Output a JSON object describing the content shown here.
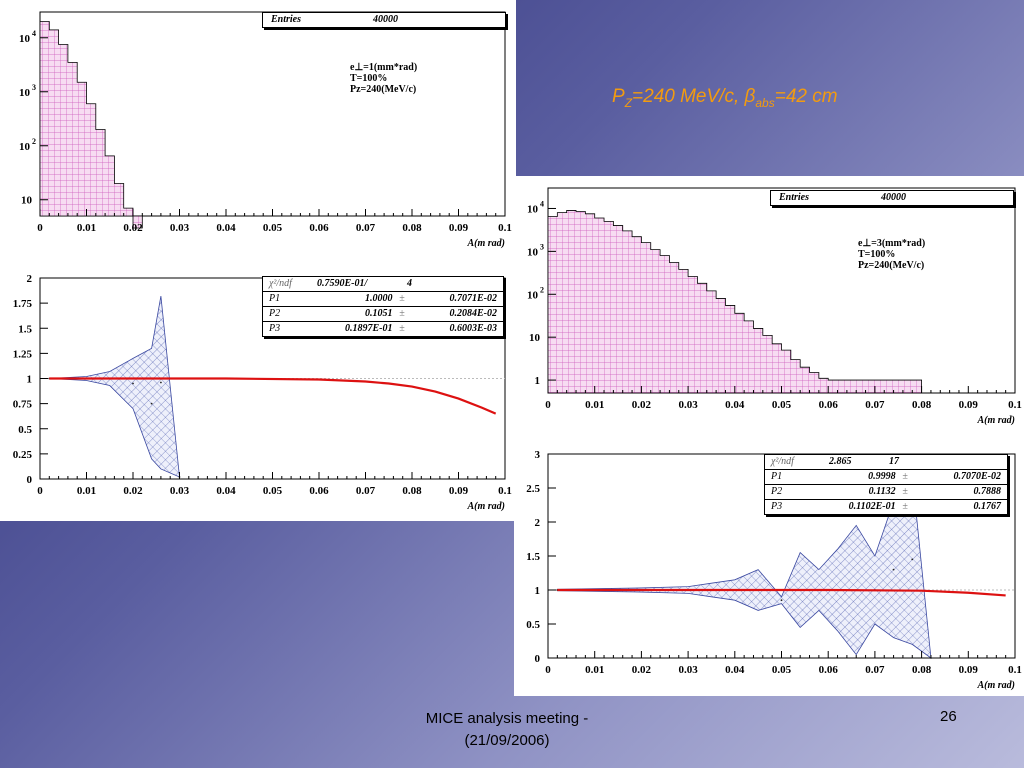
{
  "slide": {
    "title_main": "=240 MeV/c, ",
    "title_beta_sub": "abs",
    "title_tail": "=42 cm",
    "footer_line1": "MICE analysis meeting -",
    "footer_line2": "(21/09/2006)",
    "page_number": "26"
  },
  "colors": {
    "histogram_fill": "#f7dcf2",
    "histogram_hatch": "#cc55bb",
    "band_hatch": "#4050a8",
    "fit_line": "#dd1111",
    "title": "#f29b10"
  },
  "chart_data": [
    {
      "type": "bar",
      "panel": "left-top",
      "entries_label": "Entries",
      "entries_value": "40000",
      "params": [
        "e⊥=1(mm*rad)",
        "T=100%",
        "Pᴢ=240(MeV/c)"
      ],
      "xlabel": "A(m rad)",
      "xlim": [
        0,
        0.1
      ],
      "yscale": "log",
      "ylim": [
        5,
        30000
      ],
      "x_ticks": [
        "0",
        "0.01",
        "0.02",
        "0.03",
        "0.04",
        "0.05",
        "0.06",
        "0.07",
        "0.08",
        "0.09",
        "0.1"
      ],
      "y_ticks": [
        {
          "v": 10,
          "mant": "10",
          "exp": ""
        },
        {
          "v": 100,
          "mant": "10",
          "exp": "2"
        },
        {
          "v": 1000,
          "mant": "10",
          "exp": "3"
        },
        {
          "v": 10000,
          "mant": "10",
          "exp": "4"
        }
      ],
      "bin_width": 0.002,
      "values": [
        20000,
        14000,
        7500,
        3500,
        1500,
        600,
        200,
        65,
        20,
        7,
        3,
        0,
        0,
        0,
        0,
        0,
        0,
        0,
        0,
        0,
        0,
        0,
        0,
        0,
        0,
        0,
        0,
        0,
        0,
        0,
        0,
        0,
        0,
        0,
        0,
        0,
        0,
        0,
        0,
        0,
        0,
        0,
        0,
        0,
        0,
        0,
        0,
        0,
        0,
        0
      ]
    },
    {
      "type": "line",
      "panel": "left-bottom",
      "xlabel": "A(m rad)",
      "xlim": [
        0,
        0.1
      ],
      "ylim": [
        0,
        2
      ],
      "x_ticks": [
        "0",
        "0.01",
        "0.02",
        "0.03",
        "0.04",
        "0.05",
        "0.06",
        "0.07",
        "0.08",
        "0.09",
        "0.1"
      ],
      "y_ticks": [
        "0",
        "0.25",
        "0.5",
        "0.75",
        "1",
        "1.25",
        "1.5",
        "1.75",
        "2"
      ],
      "stats": {
        "chi2_label": "χ²/ndf",
        "chi2_value": "0.7590E-01/",
        "ndf": "4",
        "rows": [
          {
            "name": "P1",
            "value": "1.0000",
            "pm": "±",
            "error": "0.7071E-02"
          },
          {
            "name": "P2",
            "value": "0.1051",
            "pm": "±",
            "error": "0.2084E-02"
          },
          {
            "name": "P3",
            "value": "0.1897E-01",
            "pm": "±",
            "error": "0.6003E-03"
          }
        ]
      },
      "band_upper": {
        "x": [
          0.002,
          0.01,
          0.015,
          0.02,
          0.024,
          0.026,
          0.03
        ],
        "y": [
          1.0,
          1.02,
          1.07,
          1.2,
          1.3,
          1.82,
          0.02
        ]
      },
      "band_lower": {
        "x": [
          0.002,
          0.01,
          0.015,
          0.02,
          0.024,
          0.026,
          0.03
        ],
        "y": [
          1.0,
          0.98,
          0.93,
          0.7,
          0.2,
          0.1,
          0.02
        ]
      },
      "fit": {
        "x": [
          0.002,
          0.02,
          0.04,
          0.06,
          0.07,
          0.075,
          0.08,
          0.085,
          0.09,
          0.095,
          0.098
        ],
        "y": [
          1.0,
          1.0,
          1.0,
          0.99,
          0.97,
          0.95,
          0.92,
          0.87,
          0.8,
          0.71,
          0.65
        ]
      }
    },
    {
      "type": "bar",
      "panel": "right-top",
      "entries_label": "Entries",
      "entries_value": "40000",
      "params": [
        "e⊥=3(mm*rad)",
        "T=100%",
        "Pᴢ=240(MeV/c)"
      ],
      "xlabel": "A(m rad)",
      "xlim": [
        0,
        0.1
      ],
      "yscale": "log",
      "ylim": [
        0.5,
        30000
      ],
      "x_ticks": [
        "0",
        "0.01",
        "0.02",
        "0.03",
        "0.04",
        "0.05",
        "0.06",
        "0.07",
        "0.08",
        "0.09",
        "0.1"
      ],
      "y_ticks": [
        {
          "v": 1,
          "mant": "1",
          "exp": ""
        },
        {
          "v": 10,
          "mant": "10",
          "exp": ""
        },
        {
          "v": 100,
          "mant": "10",
          "exp": "2"
        },
        {
          "v": 1000,
          "mant": "10",
          "exp": "3"
        },
        {
          "v": 10000,
          "mant": "10",
          "exp": "4"
        }
      ],
      "bin_width": 0.002,
      "values": [
        6500,
        8000,
        9000,
        8500,
        7500,
        6000,
        5000,
        4000,
        3000,
        2200,
        1600,
        1100,
        800,
        550,
        380,
        260,
        180,
        120,
        80,
        55,
        36,
        24,
        16,
        11,
        7,
        5,
        3,
        2,
        1.5,
        1.1,
        1.0,
        1.0,
        1.0,
        1.0,
        1.0,
        1.0,
        1.0,
        1.0,
        1.0,
        1.0,
        0,
        0,
        0,
        0,
        0,
        0,
        0,
        0,
        0,
        0
      ]
    },
    {
      "type": "line",
      "panel": "right-bottom",
      "xlabel": "A(m rad)",
      "xlim": [
        0,
        0.1
      ],
      "ylim": [
        0,
        3
      ],
      "x_ticks": [
        "0",
        "0.01",
        "0.02",
        "0.03",
        "0.04",
        "0.05",
        "0.06",
        "0.07",
        "0.08",
        "0.09",
        "0.1"
      ],
      "y_ticks": [
        "0",
        "0.5",
        "1",
        "1.5",
        "2",
        "2.5",
        "3"
      ],
      "stats": {
        "chi2_label": "χ²/ndf",
        "chi2_value": "2.865",
        "ndf": "17",
        "rows": [
          {
            "name": "P1",
            "value": "0.9998",
            "pm": "±",
            "error": "0.7070E-02"
          },
          {
            "name": "P2",
            "value": "0.1132",
            "pm": "±",
            "error": "0.7888"
          },
          {
            "name": "P3",
            "value": "0.1102E-01",
            "pm": "±",
            "error": "0.1767"
          }
        ]
      },
      "band_upper": {
        "x": [
          0.002,
          0.02,
          0.03,
          0.035,
          0.04,
          0.045,
          0.05,
          0.054,
          0.058,
          0.062,
          0.066,
          0.07,
          0.074,
          0.078,
          0.082
        ],
        "y": [
          1.01,
          1.03,
          1.05,
          1.1,
          1.15,
          1.3,
          0.9,
          1.55,
          1.3,
          1.6,
          1.95,
          1.5,
          2.3,
          2.7,
          0.0
        ]
      },
      "band_lower": {
        "x": [
          0.002,
          0.02,
          0.03,
          0.035,
          0.04,
          0.045,
          0.05,
          0.054,
          0.058,
          0.062,
          0.066,
          0.07,
          0.074,
          0.078,
          0.082
        ],
        "y": [
          0.99,
          0.97,
          0.95,
          0.9,
          0.85,
          0.7,
          0.8,
          0.45,
          0.7,
          0.4,
          0.05,
          0.5,
          0.3,
          0.2,
          0.0
        ]
      },
      "fit": {
        "x": [
          0.002,
          0.02,
          0.04,
          0.06,
          0.08,
          0.09,
          0.098
        ],
        "y": [
          1.0,
          1.0,
          1.0,
          1.0,
          0.99,
          0.96,
          0.92
        ]
      }
    }
  ]
}
